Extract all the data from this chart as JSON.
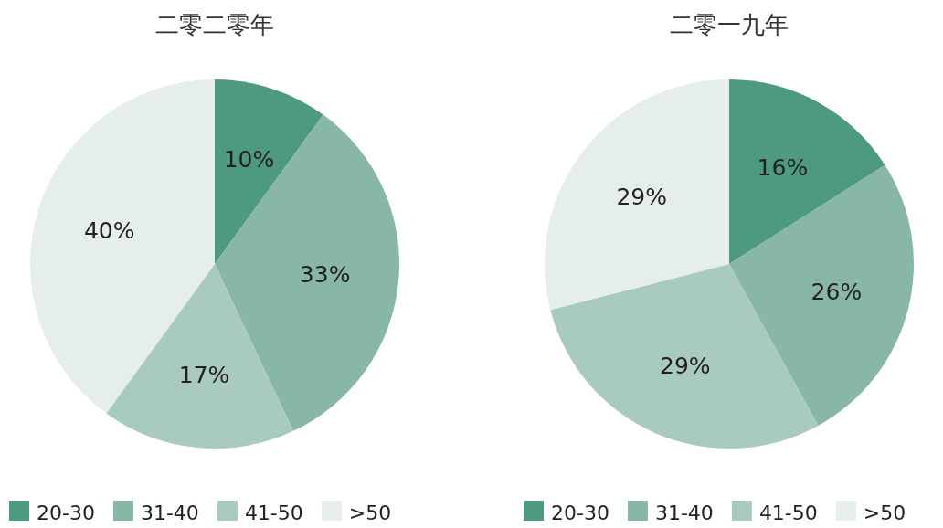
{
  "chart_data": [
    {
      "type": "pie",
      "title": "二零二零年",
      "categories": [
        "20-30",
        "31-40",
        "41-50",
        ">50"
      ],
      "values": [
        10,
        33,
        17,
        40
      ],
      "value_labels": [
        "10%",
        "33%",
        "17%",
        "40%"
      ],
      "colors": [
        "#4e9a80",
        "#88b8a5",
        "#a9cbbd",
        "#e5eee9"
      ],
      "legend": "bottom"
    },
    {
      "type": "pie",
      "title": "二零一九年",
      "categories": [
        "20-30",
        "31-40",
        "41-50",
        ">50"
      ],
      "values": [
        16,
        26,
        29,
        29
      ],
      "value_labels": [
        "16%",
        "26%",
        "29%",
        "29%"
      ],
      "colors": [
        "#4e9a80",
        "#88b8a5",
        "#a9cbbd",
        "#e5eee9"
      ],
      "legend": "bottom"
    }
  ]
}
